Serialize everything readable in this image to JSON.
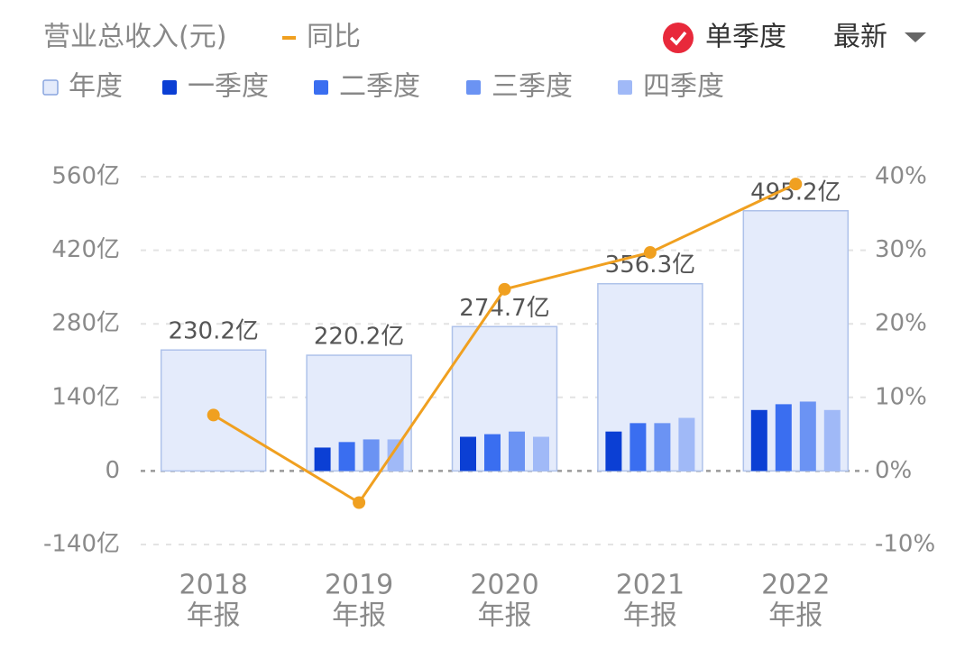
{
  "chart_data": {
    "type": "bar",
    "title": "营业总收入(元)",
    "categories": [
      [
        "2018",
        "年报"
      ],
      [
        "2019",
        "年报"
      ],
      [
        "2020",
        "年报"
      ],
      [
        "2021",
        "年报"
      ],
      [
        "2022",
        "年报"
      ]
    ],
    "series": [
      {
        "name": "年度",
        "color": "#e4ebfb",
        "values": [
          230.2,
          220.2,
          274.7,
          356.3,
          495.2
        ],
        "value_labels": [
          "230.2亿",
          "220.2亿",
          "274.7亿",
          "356.3亿",
          "495.2亿"
        ]
      },
      {
        "name": "一季度",
        "color": "#0b3fd4",
        "values": [
          null,
          44.5,
          65,
          75,
          116
        ]
      },
      {
        "name": "二季度",
        "color": "#3a6ef0",
        "values": [
          null,
          55,
          70,
          91,
          127
        ]
      },
      {
        "name": "三季度",
        "color": "#6b93f3",
        "values": [
          null,
          60,
          75,
          91,
          132
        ]
      },
      {
        "name": "四季度",
        "color": "#a0b9f7",
        "values": [
          null,
          60,
          65,
          101,
          116
        ]
      },
      {
        "name": "同比",
        "color": "#f0a020",
        "axis": "y2",
        "values": [
          7.6,
          -4.3,
          24.7,
          29.7,
          39.0
        ]
      }
    ],
    "ylim": [
      -140,
      560
    ],
    "yticks": [
      {
        "value": -140,
        "label": "-140亿"
      },
      0,
      {
        "value": 140,
        "label": "140亿"
      },
      {
        "value": 280,
        "label": "280亿"
      },
      {
        "value": 420,
        "label": "420亿"
      },
      {
        "value": 560,
        "label": "560亿"
      }
    ],
    "y2lim": [
      -10,
      40
    ],
    "y2ticks": [
      {
        "value": -10,
        "label": "-10%"
      },
      {
        "value": 0,
        "label": "0%"
      },
      {
        "value": 10,
        "label": "10%"
      },
      {
        "value": 20,
        "label": "20%"
      },
      {
        "value": 30,
        "label": "30%"
      },
      {
        "value": 40,
        "label": "40%"
      }
    ],
    "grid": true
  },
  "controls": {
    "single_quarter": "单季度",
    "period": "最新"
  }
}
